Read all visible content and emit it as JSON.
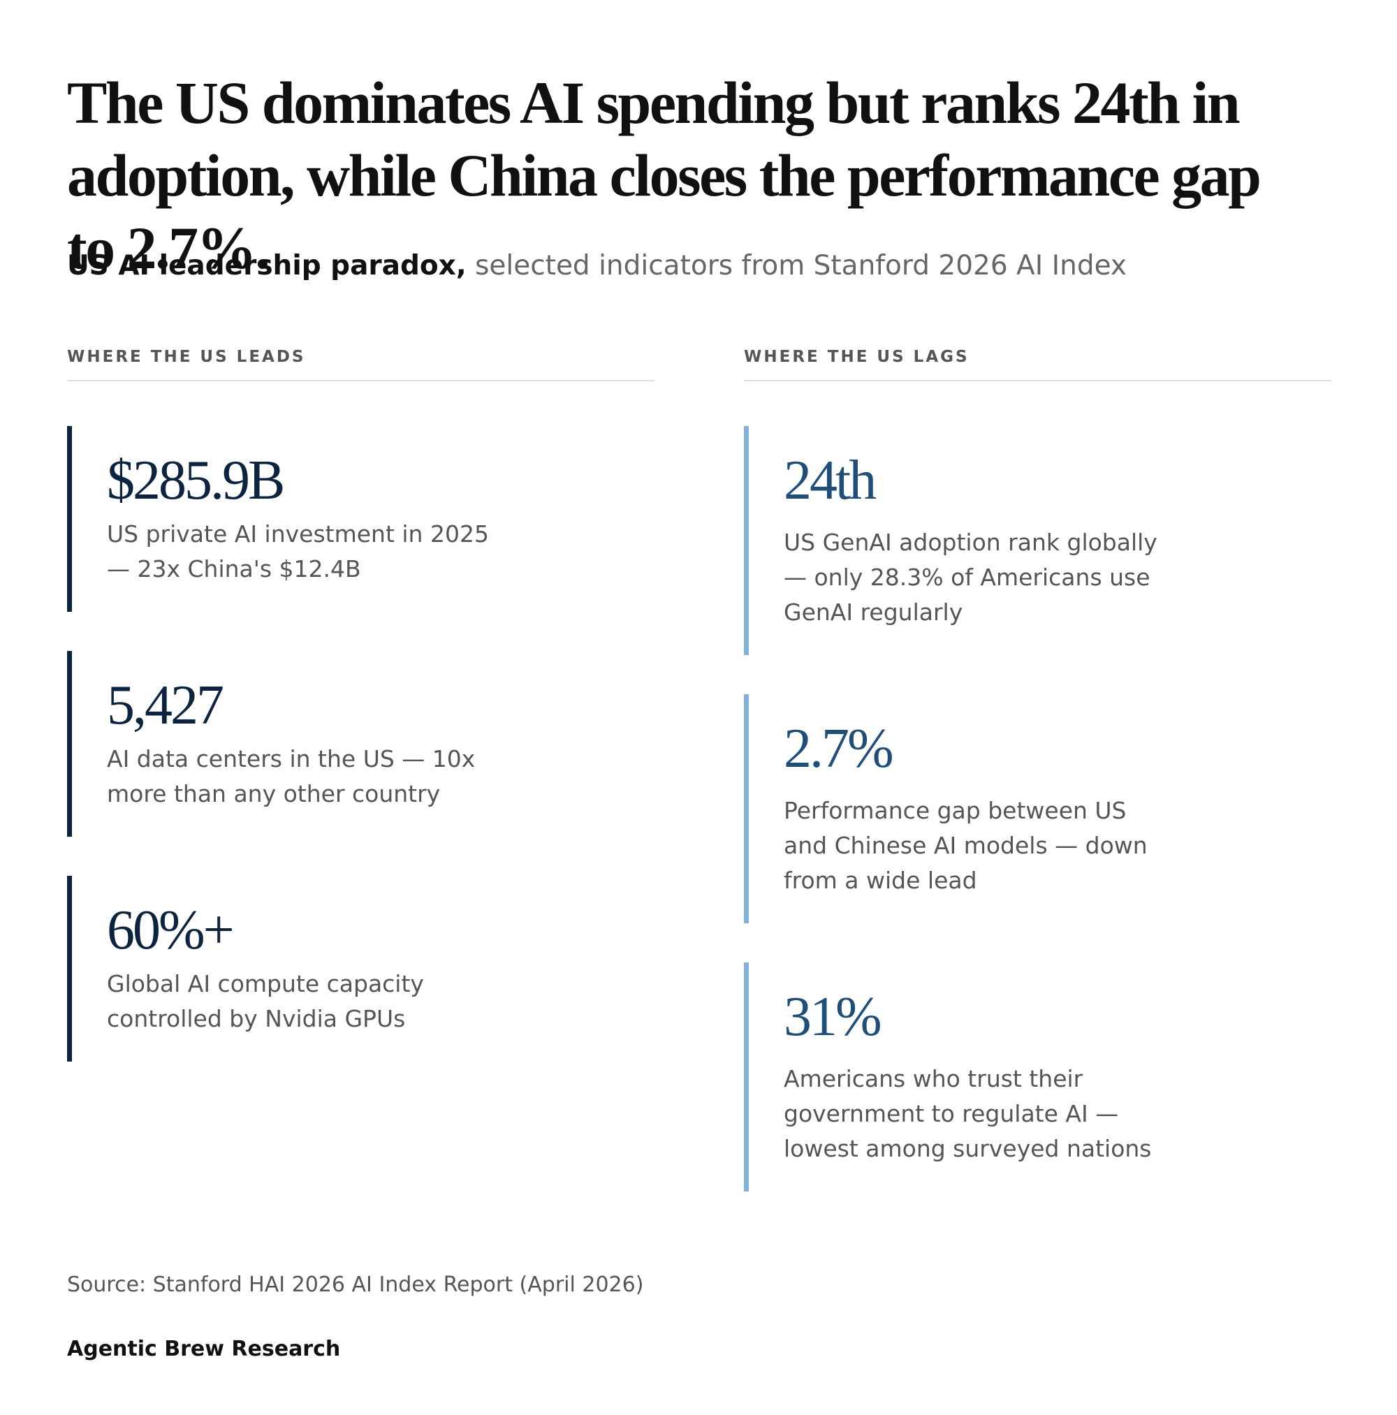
{
  "header": {
    "title": "The US dominates AI spending but ranks 24th in adoption, while China closes the performance gap to 2.7%.",
    "subtitle_bold": "US AI leadership paradox,",
    "subtitle_rest": "selected indicators from Stanford 2026 AI Index"
  },
  "columns": [
    {
      "heading": "WHERE THE US LEADS",
      "items": [
        {
          "value": "$285.9B",
          "description": "US private AI investment in 2025 — 23x China's $12.4B"
        },
        {
          "value": "5,427",
          "description": "AI data centers in the US — 10x more than any other country"
        },
        {
          "value": "60%+",
          "description": "Global AI compute capacity controlled by Nvidia GPUs"
        }
      ]
    },
    {
      "heading": "WHERE THE US LAGS",
      "items": [
        {
          "value": "24th",
          "description": "US GenAI adoption rank globally — only 28.3% of Americans use GenAI regularly"
        },
        {
          "value": "2.7%",
          "description": "Performance gap between US and Chinese AI models — down from a wide lead"
        },
        {
          "value": "31%",
          "description": "Americans who trust their government to regulate AI — lowest among surveyed nations"
        }
      ]
    }
  ],
  "footer": {
    "source": "Source: Stanford HAI 2026 AI Index Report (April 2026)",
    "brand": "Agentic Brew Research"
  }
}
